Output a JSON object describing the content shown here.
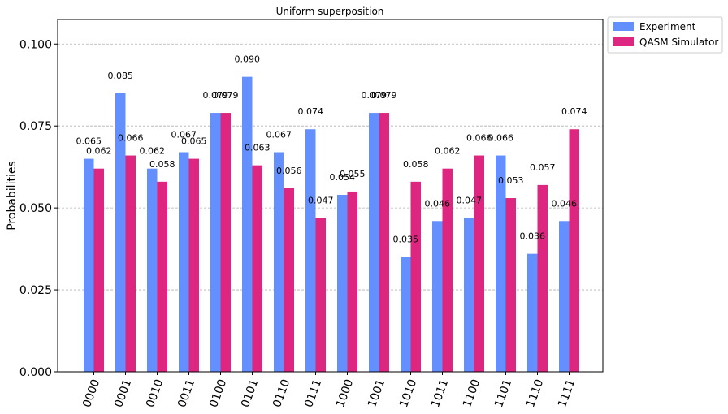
{
  "chart_data": {
    "type": "bar",
    "title": "Uniform superposition",
    "xlabel": "",
    "ylabel": "Probabilities",
    "ylim": [
      0,
      0.1075
    ],
    "yticks": [
      "0.000",
      "0.025",
      "0.050",
      "0.075",
      "0.100"
    ],
    "ytick_values": [
      0,
      0.025,
      0.05,
      0.075,
      0.1
    ],
    "grid": true,
    "legend_position": "outside-top-right",
    "categories": [
      "0000",
      "0001",
      "0010",
      "0011",
      "0100",
      "0101",
      "0110",
      "0111",
      "1000",
      "1001",
      "1010",
      "1011",
      "1100",
      "1101",
      "1110",
      "1111"
    ],
    "series": [
      {
        "name": "Experiment",
        "color": "#648fff",
        "values": [
          0.065,
          0.085,
          0.062,
          0.067,
          0.079,
          0.09,
          0.067,
          0.074,
          0.054,
          0.079,
          0.035,
          0.046,
          0.047,
          0.066,
          0.036,
          0.046
        ],
        "labels": [
          "0.065",
          "0.085",
          "0.062",
          "0.067",
          "0.079",
          "0.090",
          "0.067",
          "0.074",
          "0.054",
          "0.079",
          "0.035",
          "0.046",
          "0.047",
          "0.066",
          "0.036",
          "0.046"
        ]
      },
      {
        "name": "QASM Simulator",
        "color": "#dc267f",
        "values": [
          0.062,
          0.066,
          0.058,
          0.065,
          0.079,
          0.063,
          0.056,
          0.047,
          0.055,
          0.079,
          0.058,
          0.062,
          0.066,
          0.053,
          0.057,
          0.074
        ],
        "labels": [
          "0.062",
          "0.066",
          "0.058",
          "0.065",
          "0.079",
          "0.063",
          "0.056",
          "0.047",
          "0.055",
          "0.079",
          "0.058",
          "0.062",
          "0.066",
          "0.053",
          "0.057",
          "0.074"
        ]
      }
    ]
  }
}
